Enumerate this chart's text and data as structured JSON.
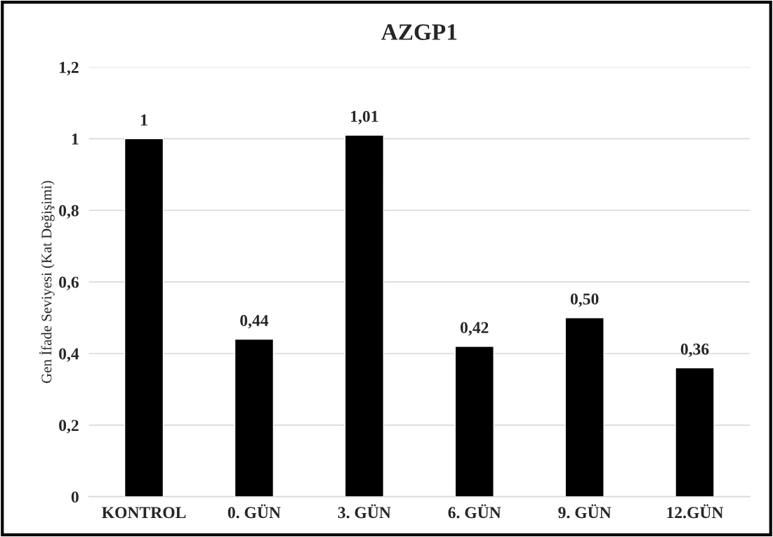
{
  "chart_data": {
    "type": "bar",
    "title": "AZGP1",
    "ylabel": "Gen İfade Seviyesi (Kat Değişimi)",
    "categories": [
      "KONTROL",
      "0. GÜN",
      "3. GÜN",
      "6. GÜN",
      "9. GÜN",
      "12.GÜN"
    ],
    "values": [
      1,
      0.44,
      1.01,
      0.42,
      0.5,
      0.36
    ],
    "value_labels": [
      "1",
      "0,44",
      "1,01",
      "0,42",
      "0,50",
      "0,36"
    ],
    "color": "#000000",
    "ylim": [
      0,
      1.2
    ],
    "yticks": [
      0,
      {
        "value": 0.2,
        "label": "0,2"
      },
      {
        "value": 0.4,
        "label": "0,4"
      },
      {
        "value": 0.6,
        "label": "0,6"
      },
      {
        "value": 0.8,
        "label": "0,8"
      },
      1,
      {
        "value": 1.2,
        "label": "1,2"
      }
    ],
    "grid": "y"
  }
}
